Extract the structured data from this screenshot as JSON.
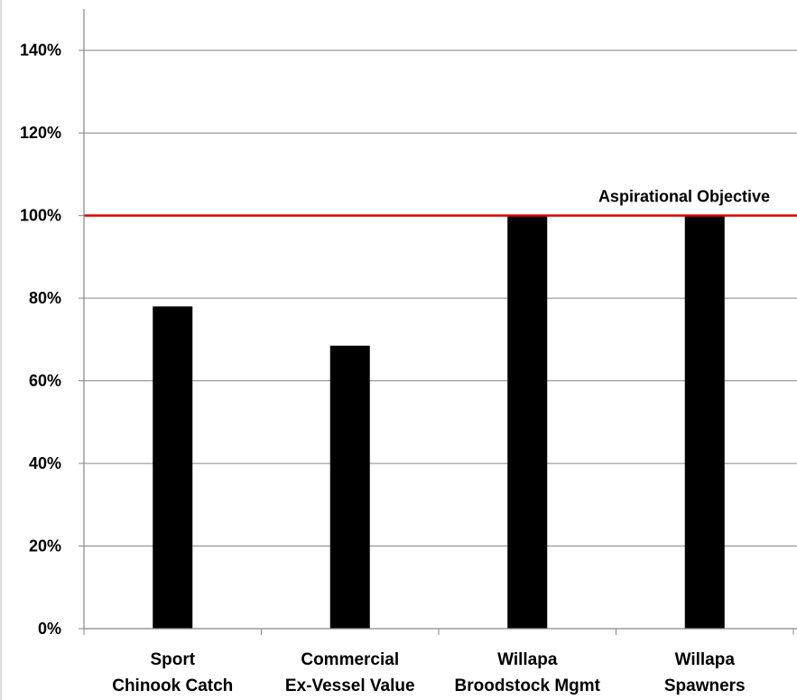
{
  "chart_data": {
    "type": "bar",
    "categories": [
      [
        "Sport",
        "Chinook Catch"
      ],
      [
        "Commercial",
        "Ex-Vessel Value"
      ],
      [
        "Willapa",
        "Broodstock Mgmt"
      ],
      [
        "Willapa",
        "Spawners"
      ]
    ],
    "values": [
      78,
      68.5,
      100,
      100
    ],
    "y_ticks": [
      "0%",
      "20%",
      "40%",
      "60%",
      "80%",
      "100%",
      "120%",
      "140%"
    ],
    "ylim": [
      0,
      150
    ],
    "grid": true,
    "reference_line": {
      "value": 100,
      "label": "Aspirational Objective",
      "color": "#e00000"
    },
    "colors": {
      "bar": "#000000",
      "grid": "#868686",
      "axis": "#868686"
    }
  }
}
